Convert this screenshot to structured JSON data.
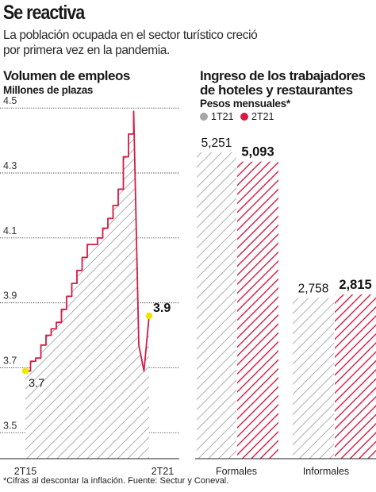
{
  "header": {
    "title": "Se reactiva",
    "subtitle_line1": "La población ocupada en el sector turístico creció",
    "subtitle_line2": "por primera vez en la pandemia."
  },
  "footnote": "*Cifras al descontar la inflación. Fuente: Sectur y Coneval.",
  "colors": {
    "gray": "#a6a6a6",
    "red": "#d51a43",
    "highlight": "#f2e600",
    "line": "#d51a43"
  },
  "chart_data": [
    {
      "type": "area",
      "title": "Volumen de empleos",
      "subtitle": "Millones de plazas",
      "xlabel": "",
      "ylabel": "",
      "x_tick_labels": [
        "2T15",
        "2T21"
      ],
      "y_ticks": [
        3.5,
        3.7,
        3.9,
        4.1,
        4.3,
        4.5
      ],
      "ylim": [
        3.42,
        4.52
      ],
      "grid": true,
      "x": [
        0,
        1,
        2,
        3,
        4,
        5,
        6,
        7,
        8,
        9,
        10,
        11,
        12,
        13,
        14,
        15,
        16,
        17,
        18,
        19,
        20,
        21,
        22,
        23,
        24
      ],
      "values": [
        3.69,
        3.72,
        3.73,
        3.77,
        3.8,
        3.82,
        3.84,
        3.88,
        3.92,
        3.96,
        4.0,
        4.04,
        4.08,
        4.08,
        4.1,
        4.13,
        4.16,
        4.2,
        4.25,
        4.35,
        4.42,
        4.49,
        3.77,
        3.69,
        3.86
      ],
      "annotations": [
        {
          "point": "start",
          "label": "3.7"
        },
        {
          "point": "end",
          "label": "3.9"
        }
      ]
    },
    {
      "type": "bar",
      "title": "Ingreso de los trabajadores de hoteles y restaurantes",
      "title_line1": "Ingreso de los trabajadores",
      "title_line2": "de hoteles y restaurantes",
      "subtitle": "Pesos mensuales*",
      "categories": [
        "Formales",
        "Informales"
      ],
      "series": [
        {
          "name": "1T21",
          "values": [
            5251,
            2758
          ],
          "labels": [
            "5,251",
            "2,758"
          ]
        },
        {
          "name": "2T21",
          "values": [
            5093,
            2815
          ],
          "labels": [
            "5,093",
            "2,815"
          ]
        }
      ],
      "ylim": [
        0,
        5400
      ],
      "legend": "top-left"
    }
  ]
}
